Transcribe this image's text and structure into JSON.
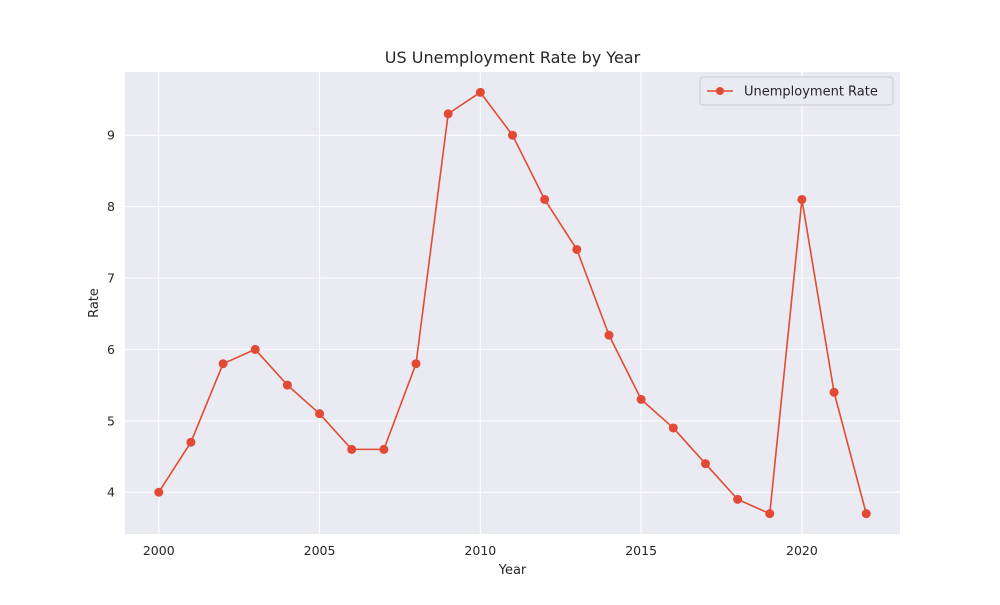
{
  "chart_data": {
    "type": "line",
    "title": "US Unemployment Rate by Year",
    "xlabel": "Year",
    "ylabel": "Rate",
    "xlim": [
      1998.95,
      2023.05
    ],
    "ylim": [
      3.415,
      9.885
    ],
    "xticks": [
      2000,
      2005,
      2010,
      2015,
      2020
    ],
    "yticks": [
      4,
      5,
      6,
      7,
      8,
      9
    ],
    "grid": true,
    "legend_position": "top-right",
    "series": [
      {
        "name": "Unemployment Rate",
        "color": "#e24a33",
        "marker": "circle",
        "x": [
          2000,
          2001,
          2002,
          2003,
          2004,
          2005,
          2006,
          2007,
          2008,
          2009,
          2010,
          2011,
          2012,
          2013,
          2014,
          2015,
          2016,
          2017,
          2018,
          2019,
          2020,
          2021,
          2022
        ],
        "y": [
          4.0,
          4.7,
          5.8,
          6.0,
          5.5,
          5.1,
          4.6,
          4.6,
          5.8,
          9.3,
          9.6,
          9.0,
          8.1,
          7.4,
          6.2,
          5.3,
          4.9,
          4.4,
          3.9,
          3.7,
          8.1,
          5.4,
          3.7
        ]
      }
    ]
  }
}
